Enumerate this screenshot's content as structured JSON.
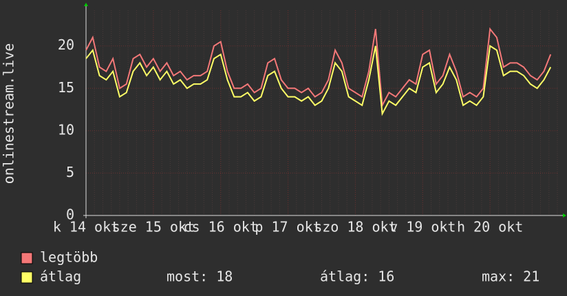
{
  "chart_data": {
    "type": "line",
    "y_label": "onlinestream.live",
    "x": [
      14.0,
      14.1,
      14.2,
      14.3,
      14.4,
      14.5,
      14.6,
      14.7,
      14.8,
      14.9,
      15.0,
      15.1,
      15.2,
      15.3,
      15.4,
      15.5,
      15.6,
      15.7,
      15.8,
      15.9,
      16.0,
      16.1,
      16.2,
      16.3,
      16.4,
      16.5,
      16.6,
      16.7,
      16.8,
      16.9,
      17.0,
      17.1,
      17.2,
      17.3,
      17.4,
      17.5,
      17.6,
      17.7,
      17.8,
      17.9,
      18.0,
      18.1,
      18.2,
      18.3,
      18.4,
      18.5,
      18.6,
      18.7,
      18.8,
      18.9,
      19.0,
      19.1,
      19.2,
      19.3,
      19.4,
      19.5,
      19.6,
      19.7,
      19.8,
      19.9,
      20.0,
      20.1,
      20.2,
      20.3,
      20.4,
      20.5,
      20.6,
      20.7,
      20.8,
      20.9
    ],
    "series": [
      {
        "name": "legtöbb",
        "color": "#f47878",
        "values": [
          19.5,
          21,
          17.5,
          17,
          18.5,
          15,
          15.5,
          18.5,
          19,
          17.5,
          18.5,
          17,
          18,
          16.5,
          17,
          16,
          16.5,
          16.5,
          17,
          20,
          20.5,
          17,
          15,
          15,
          15.5,
          14.5,
          15,
          18,
          18.5,
          16,
          15,
          15,
          14.5,
          15,
          14,
          14.5,
          16,
          19.5,
          18,
          15,
          14.5,
          14,
          17,
          22,
          13,
          14.5,
          14,
          15,
          16,
          15.5,
          19,
          19.5,
          15.5,
          16.5,
          19,
          17,
          14,
          14.5,
          14,
          15,
          22,
          21,
          17.5,
          18,
          18,
          17.5,
          16.5,
          16,
          17,
          19
        ]
      },
      {
        "name": "átlag",
        "color": "#ffff66",
        "values": [
          18.5,
          19.5,
          16.5,
          16,
          17,
          14,
          14.5,
          17,
          18,
          16.5,
          17.5,
          16,
          17,
          15.5,
          16,
          15,
          15.5,
          15.5,
          16,
          18.5,
          19,
          16,
          14,
          14,
          14.5,
          13.5,
          14,
          16.5,
          17,
          15,
          14,
          14,
          13.5,
          14,
          13,
          13.5,
          15,
          18,
          17,
          14,
          13.5,
          13,
          16,
          20,
          12,
          13.5,
          13,
          14,
          15,
          14.5,
          17.5,
          18,
          14.5,
          15.5,
          17.5,
          16,
          13,
          13.5,
          13,
          14,
          20,
          19.5,
          16.5,
          17,
          17,
          16.5,
          15.5,
          15,
          16,
          17.5
        ]
      }
    ],
    "xlim": [
      14,
      21
    ],
    "xticks": [
      {
        "value": 14,
        "label": "k 14 okt"
      },
      {
        "value": 15,
        "label": "sze 15 okt"
      },
      {
        "value": 16,
        "label": "cs 16 okt"
      },
      {
        "value": 17,
        "label": "p 17 okt"
      },
      {
        "value": 18,
        "label": "szo 18 okt"
      },
      {
        "value": 19,
        "label": "v 19 okt"
      },
      {
        "value": 20,
        "label": "h 20 okt"
      }
    ],
    "ylim": [
      0,
      24.2
    ],
    "yticks": [
      0,
      5,
      10,
      15,
      20
    ],
    "grid": true,
    "stats": [
      {
        "label": "most:",
        "value": 18
      },
      {
        "label": "átlag:",
        "value": 16
      },
      {
        "label": "max:",
        "value": 21
      }
    ]
  }
}
